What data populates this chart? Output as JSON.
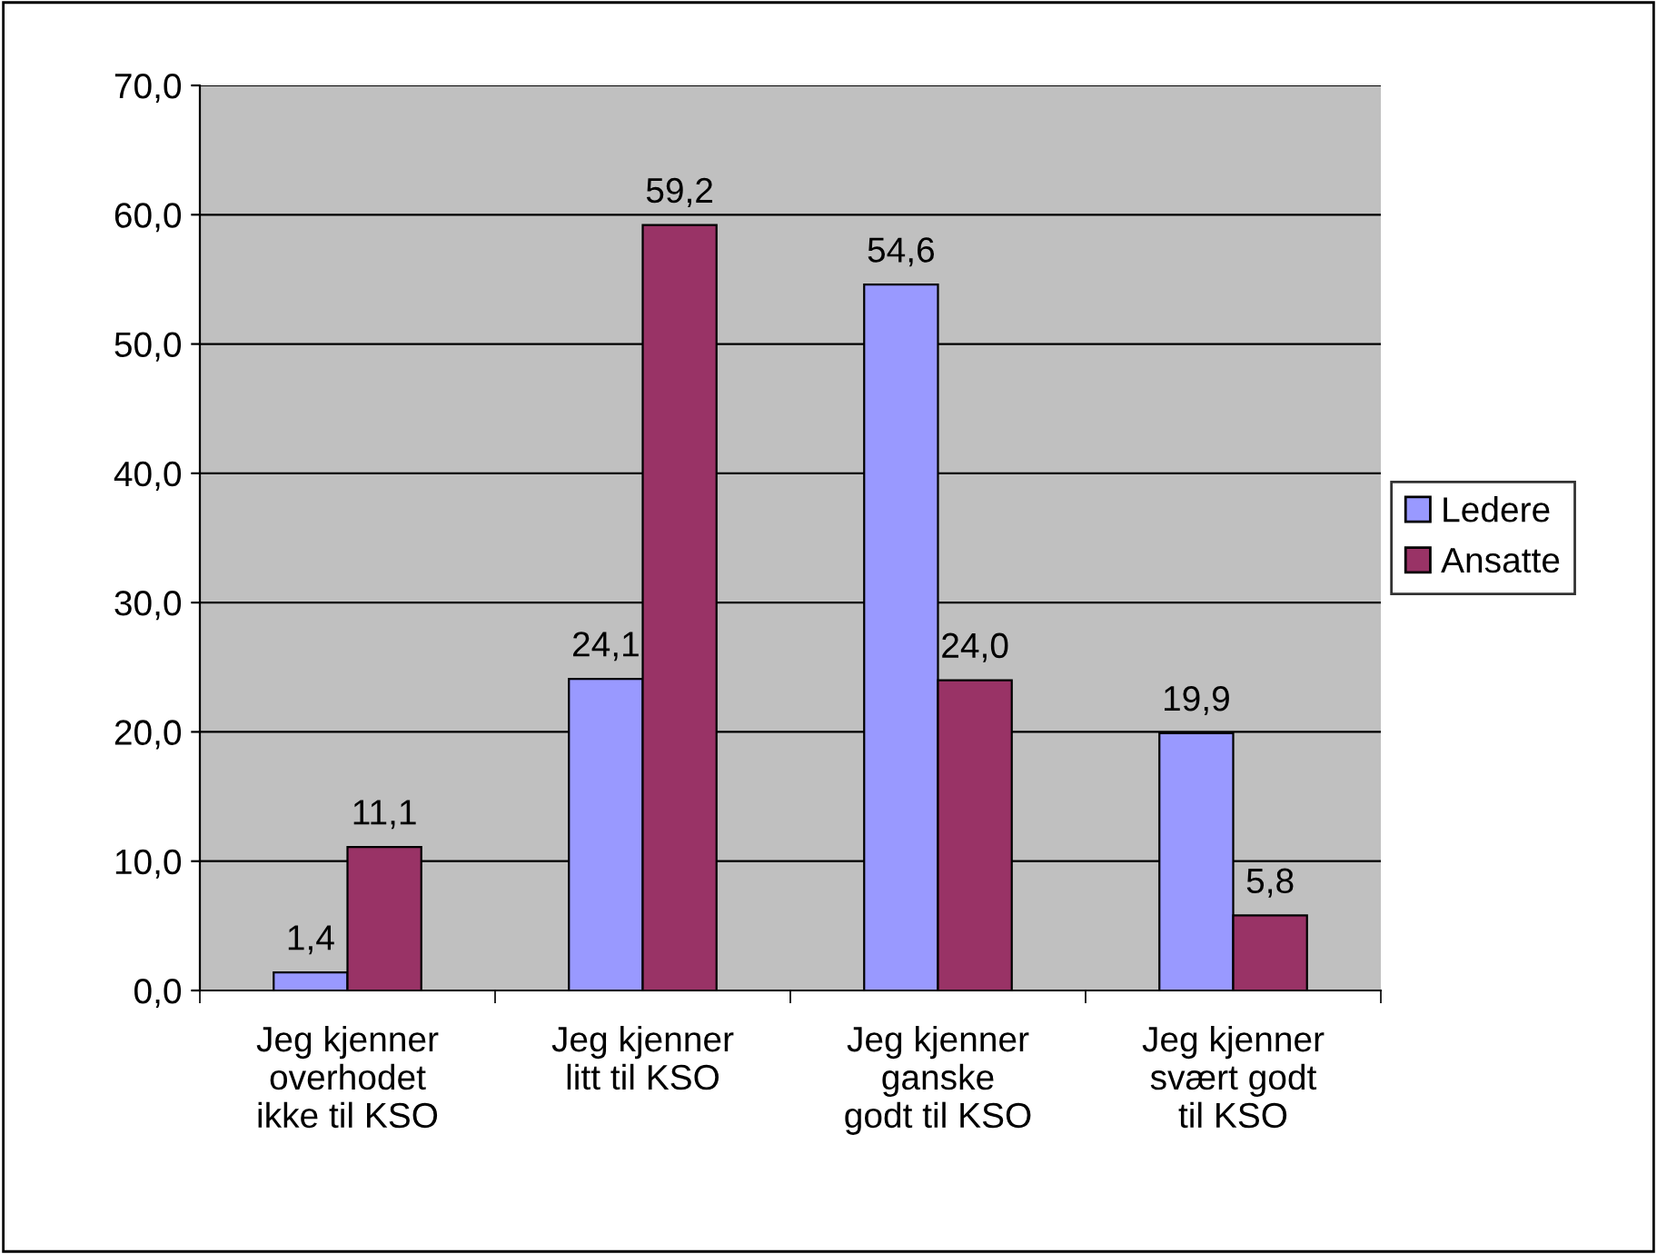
{
  "chart_data": {
    "type": "bar",
    "categories": [
      "Jeg kjenner\noverhodet\nikke til KSO",
      "Jeg kjenner\nlitt til KSO",
      "Jeg kjenner\nganske\ngodt til KSO",
      "Jeg kjenner\nsvært godt\ntil KSO"
    ],
    "series": [
      {
        "name": "Ledere",
        "color": "#9999ff",
        "values": [
          1.4,
          24.1,
          54.6,
          19.9
        ],
        "value_labels": [
          "1,4",
          "24,1",
          "54,6",
          "19,9"
        ]
      },
      {
        "name": "Ansatte",
        "color": "#993366",
        "values": [
          11.1,
          59.2,
          24.0,
          5.8
        ],
        "value_labels": [
          "11,1",
          "59,2",
          "24,0",
          "5,8"
        ]
      }
    ],
    "ylim": [
      0,
      70
    ],
    "yticks": [
      {
        "value": 0,
        "label": "0,0"
      },
      {
        "value": 10,
        "label": "10,0"
      },
      {
        "value": 20,
        "label": "20,0"
      },
      {
        "value": 30,
        "label": "30,0"
      },
      {
        "value": 40,
        "label": "40,0"
      },
      {
        "value": 50,
        "label": "50,0"
      },
      {
        "value": 60,
        "label": "60,0"
      },
      {
        "value": 70,
        "label": "70,0"
      }
    ],
    "grid": "y",
    "legend": "right"
  }
}
